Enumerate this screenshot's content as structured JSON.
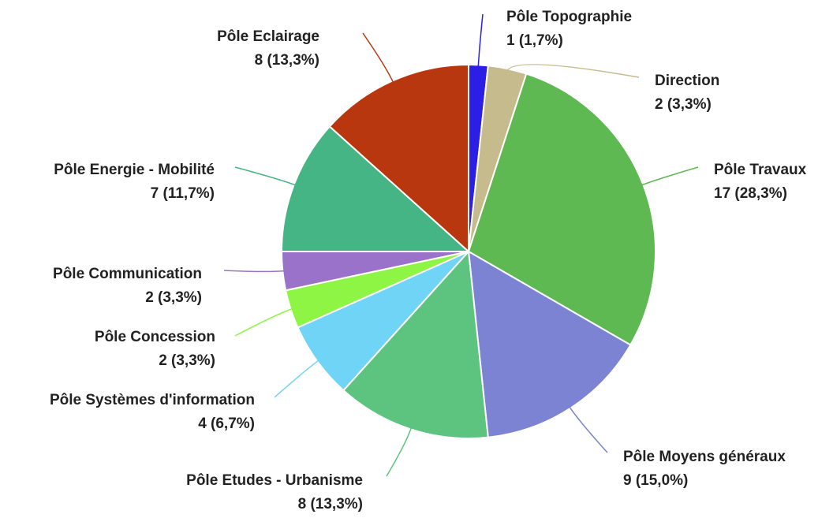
{
  "chart_data": {
    "type": "pie",
    "categories": [
      "Pôle Topographie",
      "Direction",
      "Pôle Travaux",
      "Pôle Moyens généraux",
      "Pôle Etudes - Urbanisme",
      "Pôle Systèmes d'information",
      "Pôle Concession",
      "Pôle Communication",
      "Pôle Energie - Mobilité",
      "Pôle Eclairage"
    ],
    "values": [
      1,
      2,
      17,
      9,
      8,
      4,
      2,
      2,
      7,
      8
    ],
    "value_labels": [
      "1 (1,7%)",
      "2 (3,3%)",
      "17 (28,3%)",
      "9 (15,0%)",
      "8 (13,3%)",
      "4 (6,7%)",
      "2 (3,3%)",
      "2 (3,3%)",
      "7 (11,7%)",
      "8 (13,3%)"
    ],
    "colors": [
      "#2b1fe6",
      "#c6bb8c",
      "#5eb952",
      "#7b83d2",
      "#5dc480",
      "#6fd4f6",
      "#8ff545",
      "#9a72ca",
      "#46b586",
      "#b8370f"
    ]
  }
}
